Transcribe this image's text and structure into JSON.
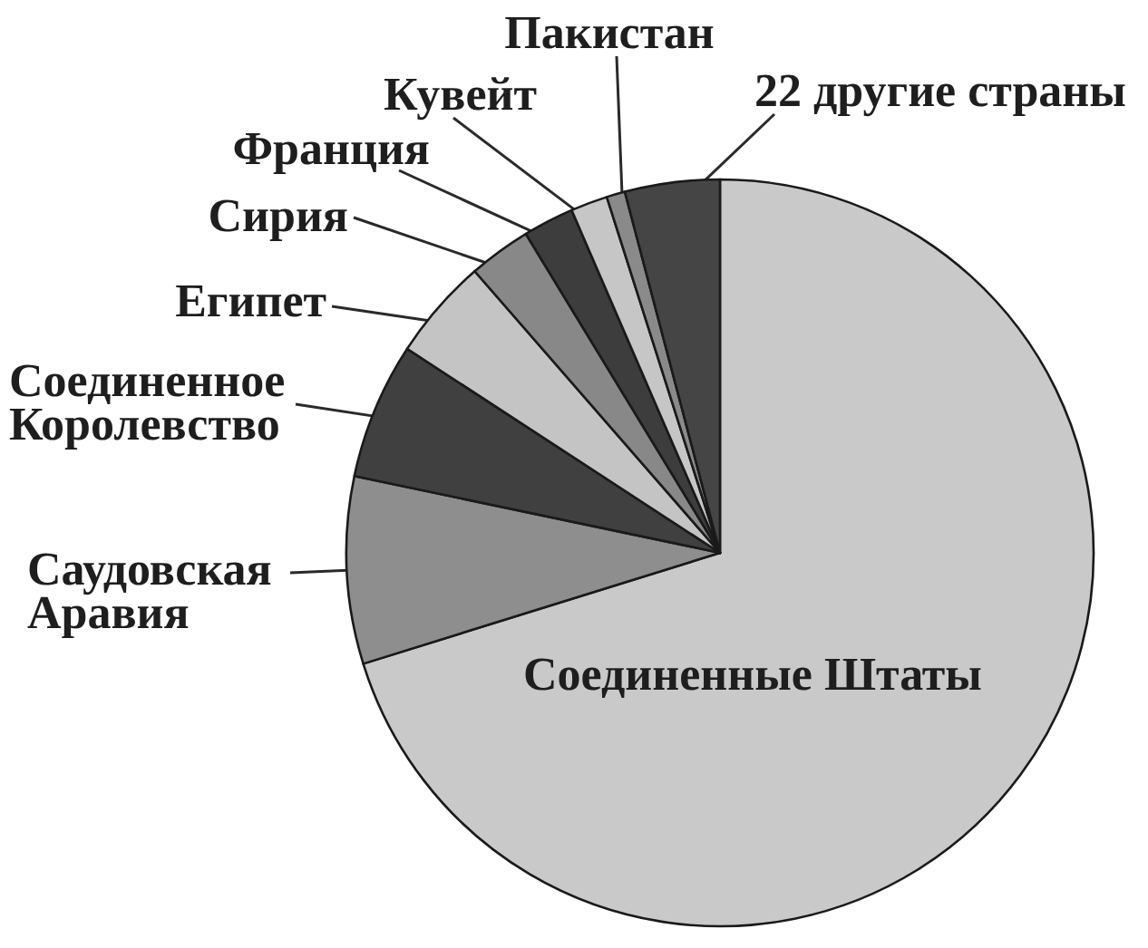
{
  "chart_data": {
    "type": "pie",
    "categories": [
      "Соединенные Штаты",
      "Саудовская Аравия",
      "Соединенное Королевство",
      "Египет",
      "Сирия",
      "Франция",
      "Кувейт",
      "Пакистан",
      "22 другие страны"
    ],
    "values": [
      70.2,
      8.1,
      5.9,
      4.4,
      2.7,
      2.2,
      1.6,
      0.8,
      4.1
    ],
    "colors": [
      "#c9c9c9",
      "#8e8e8e",
      "#404040",
      "#c4c4c4",
      "#888888",
      "#3d3d3d",
      "#c6c6c6",
      "#8a8a8a",
      "#454545"
    ]
  }
}
